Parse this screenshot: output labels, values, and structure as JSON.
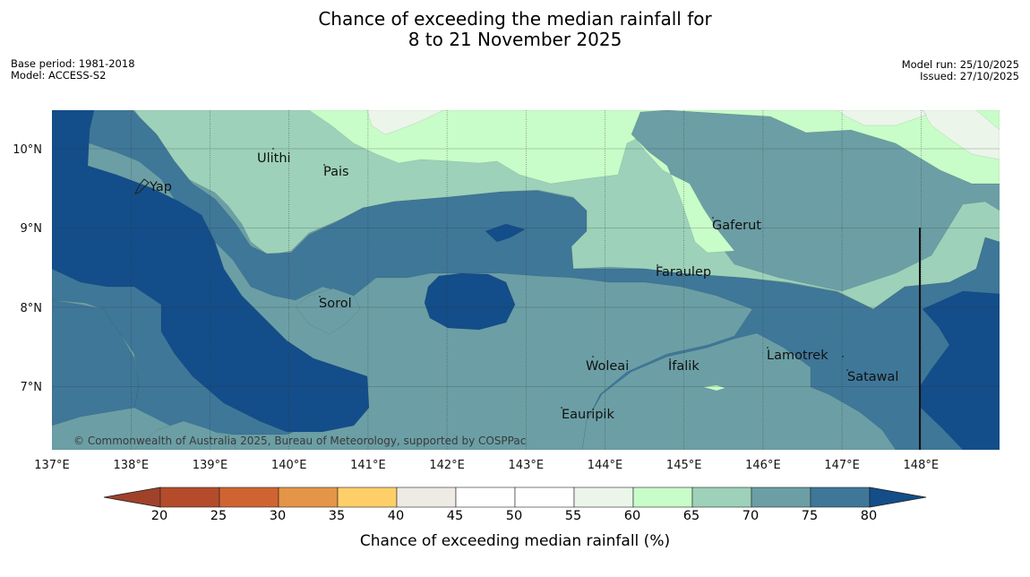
{
  "title": {
    "line1": "Chance of exceeding the median rainfall for",
    "line2": "8 to 21 November 2025"
  },
  "meta_left": {
    "base_period": "Base period: 1981-2018",
    "model": "Model: ACCESS-S2"
  },
  "meta_right": {
    "model_run": "Model run: 25/10/2025",
    "issued": "Issued: 27/10/2025"
  },
  "map": {
    "lon_ticks": [
      "137°E",
      "138°E",
      "139°E",
      "140°E",
      "141°E",
      "142°E",
      "143°E",
      "144°E",
      "145°E",
      "146°E",
      "147°E",
      "148°E"
    ],
    "lat_ticks": [
      "10°N",
      "9°N",
      "8°N",
      "7°N"
    ],
    "places": [
      {
        "name": "Ulithi"
      },
      {
        "name": "Pais"
      },
      {
        "name": "Yap"
      },
      {
        "name": "Gaferut"
      },
      {
        "name": "Faraulep"
      },
      {
        "name": "Sorol"
      },
      {
        "name": "Lamotrek"
      },
      {
        "name": "Woleai"
      },
      {
        "name": "Ifalik"
      },
      {
        "name": "Satawal"
      },
      {
        "name": "Eauripik"
      }
    ],
    "copyright": "© Commonwealth of Australia 2025, Bureau of Meteorology, supported by COSPPac",
    "colors": {
      "c50_55": "#ffffff",
      "c55_60": "#ebf5ea",
      "c60_65": "#c8fcc8",
      "c65_70": "#9dd1b9",
      "c70_75": "#6b9fa5",
      "c75_80": "#3f7799",
      "c80plus": "#134e8a"
    }
  },
  "colorbar": {
    "title": "Chance of exceeding median rainfall (%)",
    "tick_labels": [
      "20",
      "25",
      "30",
      "35",
      "40",
      "45",
      "50",
      "55",
      "60",
      "65",
      "70",
      "75",
      "80"
    ],
    "bins": [
      {
        "color": "#b44c2b"
      },
      {
        "color": "#cf6432"
      },
      {
        "color": "#e49548"
      },
      {
        "color": "#fecf68"
      },
      {
        "color": "#eeeae4"
      },
      {
        "color": "#ffffff"
      },
      {
        "color": "#ffffff"
      },
      {
        "color": "#ebf5ea"
      },
      {
        "color": "#c8fcc8"
      },
      {
        "color": "#9dd1b9"
      },
      {
        "color": "#6b9fa5"
      },
      {
        "color": "#3f7799"
      }
    ],
    "low_extension_color": "#a0422a",
    "high_extension_color": "#134e8a"
  }
}
